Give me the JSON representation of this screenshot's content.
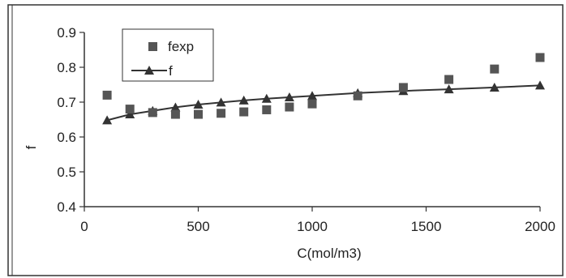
{
  "chart_data": {
    "type": "scatter",
    "title": "",
    "xlabel": "C(mol/m3)",
    "ylabel": "f",
    "xlim": [
      0,
      2000
    ],
    "ylim": [
      0.4,
      0.9
    ],
    "xticks": [
      0,
      500,
      1000,
      1500,
      2000
    ],
    "xtick_labels": [
      "0",
      "500",
      "1000",
      "1500",
      "2000"
    ],
    "yticks": [
      0.4,
      0.5,
      0.6,
      0.7,
      0.8,
      0.9
    ],
    "ytick_labels": [
      "0.4",
      "0.5",
      "0.6",
      "0.7",
      "0.8",
      "0.9"
    ],
    "grid": false,
    "legend_position": "top-left",
    "series": [
      {
        "name": "fexp",
        "marker": "square",
        "line": false,
        "color": "#555555",
        "x": [
          100,
          200,
          300,
          400,
          500,
          600,
          700,
          800,
          900,
          1000,
          1200,
          1400,
          1600,
          1800,
          2000
        ],
        "y": [
          0.72,
          0.68,
          0.67,
          0.665,
          0.665,
          0.668,
          0.672,
          0.678,
          0.686,
          0.695,
          0.718,
          0.742,
          0.765,
          0.795,
          0.828
        ]
      },
      {
        "name": "f",
        "marker": "triangle",
        "line": true,
        "color": "#333333",
        "x": [
          100,
          200,
          300,
          400,
          500,
          600,
          700,
          800,
          900,
          1000,
          1200,
          1400,
          1600,
          1800,
          2000
        ],
        "y": [
          0.648,
          0.665,
          0.675,
          0.685,
          0.693,
          0.699,
          0.705,
          0.71,
          0.714,
          0.718,
          0.726,
          0.732,
          0.737,
          0.742,
          0.748
        ]
      }
    ]
  }
}
